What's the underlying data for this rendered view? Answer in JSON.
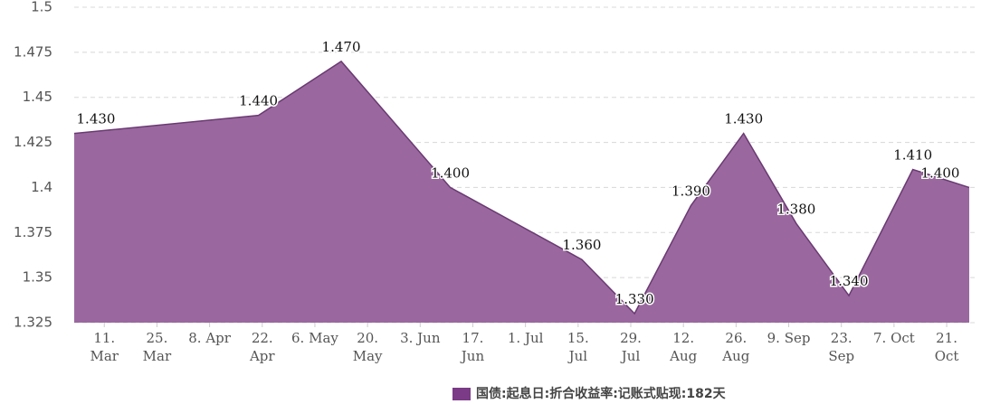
{
  "chart_data": {
    "type": "area",
    "x": [
      "03-03",
      "04-21",
      "05-13",
      "06-11",
      "07-16",
      "07-30",
      "08-14",
      "08-28",
      "09-11",
      "09-25",
      "10-12",
      "10-27"
    ],
    "xlim": [
      "03-03",
      "10-27"
    ],
    "xticks": [
      {
        "value": "03-11",
        "label": "11. Mar"
      },
      {
        "value": "03-25",
        "label": "25. Mar"
      },
      {
        "value": "04-08",
        "label": "8. Apr"
      },
      {
        "value": "04-22",
        "label": "22. Apr"
      },
      {
        "value": "05-06",
        "label": "6. May"
      },
      {
        "value": "05-20",
        "label": "20. May"
      },
      {
        "value": "06-03",
        "label": "3. Jun"
      },
      {
        "value": "06-17",
        "label": "17. Jun"
      },
      {
        "value": "07-01",
        "label": "1. Jul"
      },
      {
        "value": "07-15",
        "label": "15. Jul"
      },
      {
        "value": "07-29",
        "label": "29. Jul"
      },
      {
        "value": "08-12",
        "label": "12. Aug"
      },
      {
        "value": "08-26",
        "label": "26. Aug"
      },
      {
        "value": "09-09",
        "label": "9. Sep"
      },
      {
        "value": "09-23",
        "label": "23. Sep"
      },
      {
        "value": "10-07",
        "label": "7. Oct"
      },
      {
        "value": "10-21",
        "label": "21. Oct"
      }
    ],
    "ylim": [
      1.325,
      1.5
    ],
    "yticks": [
      1.325,
      1.35,
      1.375,
      1.4,
      1.425,
      1.45,
      1.475,
      1.5
    ],
    "grid": true,
    "series": [
      {
        "name": "国债:起息日:折合收益率:记账式贴现:182天",
        "color": "#9a689f",
        "line_color": "#6a3a72",
        "values": [
          1.43,
          1.44,
          1.47,
          1.4,
          1.36,
          1.33,
          1.39,
          1.43,
          1.38,
          1.34,
          1.41,
          1.4
        ],
        "value_labels": [
          "1.430",
          "1.440",
          "1.470",
          "1.400",
          "1.360",
          "1.330",
          "1.390",
          "1.430",
          "1.380",
          "1.340",
          "1.410",
          "1.400"
        ]
      }
    ]
  }
}
